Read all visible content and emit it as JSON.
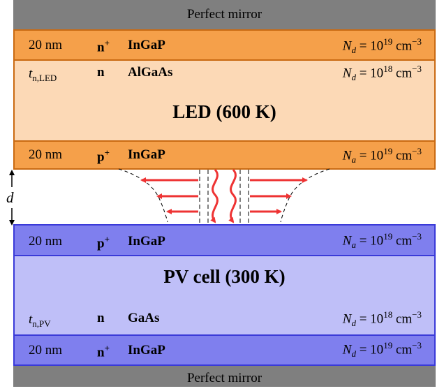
{
  "mirror_top": "Perfect mirror",
  "mirror_bottom": "Perfect mirror",
  "led": {
    "n_contact": {
      "thickness": "20 nm",
      "doping": "n",
      "material": "InGaP",
      "conc_symbol": "N",
      "conc_sub": "d",
      "conc_value": "= 10",
      "conc_exp": "19",
      "conc_unit": "cm",
      "conc_unit_exp": "−3"
    },
    "absorber": {
      "thickness_symbol": "t",
      "thickness_sub": "n,LED",
      "doping": "n",
      "material": "AlGaAs",
      "conc_symbol": "N",
      "conc_sub": "d",
      "conc_value": "= 10",
      "conc_exp": "18",
      "conc_unit": "cm",
      "conc_unit_exp": "−3"
    },
    "title": "LED (600 K)",
    "p_contact": {
      "thickness": "20 nm",
      "doping": "p",
      "material": "InGaP",
      "conc_symbol": "N",
      "conc_sub": "a",
      "conc_value": "= 10",
      "conc_exp": "19",
      "conc_unit": "cm",
      "conc_unit_exp": "−3"
    }
  },
  "gap_label": "d",
  "pv": {
    "p_contact": {
      "thickness": "20 nm",
      "doping": "p",
      "material": "InGaP",
      "conc_symbol": "N",
      "conc_sub": "a",
      "conc_value": "= 10",
      "conc_exp": "19",
      "conc_unit": "cm",
      "conc_unit_exp": "−3"
    },
    "title": "PV cell (300 K)",
    "absorber": {
      "thickness_symbol": "t",
      "thickness_sub": "n,PV",
      "doping": "n",
      "material": "GaAs",
      "conc_symbol": "N",
      "conc_sub": "d",
      "conc_value": "= 10",
      "conc_exp": "18",
      "conc_unit": "cm",
      "conc_unit_exp": "−3"
    },
    "n_contact": {
      "thickness": "20 nm",
      "doping": "n",
      "material": "InGaP",
      "conc_symbol": "N",
      "conc_sub": "d",
      "conc_value": "= 10",
      "conc_exp": "19",
      "conc_unit": "cm",
      "conc_unit_exp": "−3"
    }
  },
  "colors": {
    "led_dark": "#f5a04a",
    "led_light": "#fcd9b6",
    "pv_dark": "#7f7fee",
    "pv_light": "#bfbff8",
    "mirror": "#7f7f7f",
    "arrow": "#ee3333"
  }
}
